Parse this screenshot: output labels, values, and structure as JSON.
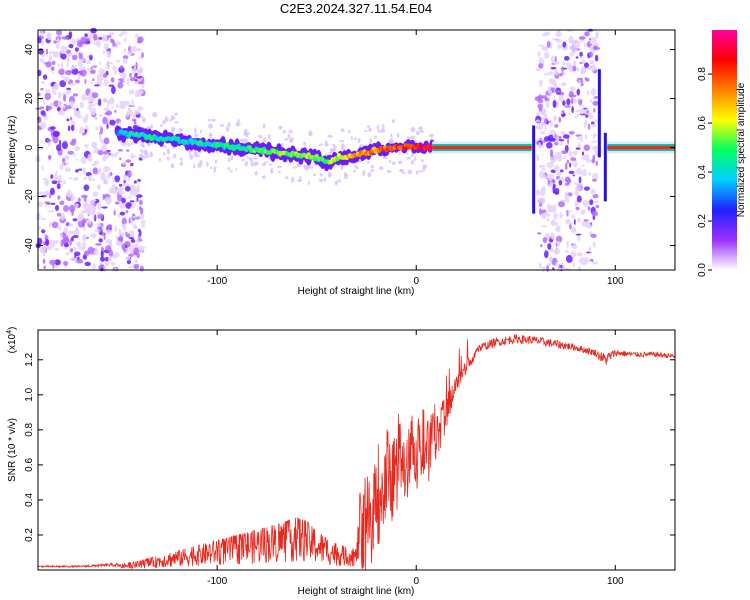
{
  "figure": {
    "title": "C2E3.2024.327.11.54.E04"
  },
  "chart_data": [
    {
      "type": "heatmap",
      "title": "C2E3.2024.327.11.54.E04",
      "xlabel": "Height of straight line (km)",
      "ylabel": "Frequency (Hz)",
      "xlim": [
        -190,
        130
      ],
      "ylim": [
        -50,
        48
      ],
      "xticks": [
        -100,
        0,
        100
      ],
      "xtick_labels": [
        "-100",
        "0",
        "100"
      ],
      "yticks": [
        -40,
        -20,
        0,
        20,
        40
      ],
      "ytick_labels": [
        "-40",
        "-20",
        "0",
        "20",
        "40"
      ],
      "colorbar": {
        "label": "Normalized spectral amplitude",
        "range": [
          0,
          0.98
        ],
        "ticks": [
          0.0,
          0.2,
          0.4,
          0.6,
          0.8
        ],
        "tick_labels": [
          "0.0",
          "0.2",
          "0.4",
          "0.6",
          "0.8"
        ],
        "colormap": [
          "#ffffff",
          "#9b30ff",
          "#2020ff",
          "#00d0ff",
          "#00ff60",
          "#ffff00",
          "#ff8000",
          "#ff0000",
          "#ff00a0"
        ]
      },
      "ridge": {
        "x": [
          -150,
          -140,
          -130,
          -120,
          -110,
          -100,
          -90,
          -80,
          -70,
          -60,
          -50,
          -45,
          -40,
          -30,
          -20,
          -10,
          0,
          10,
          20,
          40,
          55,
          60,
          65,
          90,
          95,
          100,
          130
        ],
        "y": [
          6,
          5,
          4,
          3,
          2,
          1,
          0,
          -1,
          -2,
          -3,
          -4,
          -6,
          -4,
          -3,
          -1,
          0,
          0.5,
          0,
          0,
          0,
          0,
          0,
          0,
          0,
          0,
          0,
          0
        ],
        "amplitude": [
          0.35,
          0.45,
          0.45,
          0.4,
          0.4,
          0.45,
          0.45,
          0.5,
          0.55,
          0.55,
          0.55,
          0.5,
          0.6,
          0.7,
          0.75,
          0.8,
          0.85,
          0.95,
          0.95,
          0.95,
          0.95,
          0.3,
          0.3,
          0.3,
          0.95,
          0.95,
          0.95
        ]
      },
      "noise_regions_x": [
        [
          -190,
          -137
        ],
        [
          61,
          91
        ]
      ],
      "grid": false
    },
    {
      "type": "line",
      "xlabel": "Height of straight line (km)",
      "ylabel": "SNR (10 * v/v)",
      "multiplier": "(x10",
      "multiplier_exp": "4",
      "multiplier_close": ")",
      "xlim": [
        -190,
        130
      ],
      "ylim": [
        0,
        1.37
      ],
      "xticks": [
        -100,
        0,
        100
      ],
      "xtick_labels": [
        "-100",
        "0",
        "100"
      ],
      "yticks": [
        0.2,
        0.4,
        0.6,
        0.8,
        1.0,
        1.2
      ],
      "ytick_labels": [
        "0.2",
        "0.4",
        "0.6",
        "0.8",
        "1.0",
        "1.2"
      ],
      "color": "#e8281e",
      "series": [
        {
          "x": [
            -190,
            -170,
            -150,
            -140,
            -130,
            -120,
            -110,
            -100,
            -90,
            -80,
            -70,
            -60,
            -55,
            -50,
            -45,
            -40,
            -35,
            -30,
            -28,
            -25,
            -20,
            -15,
            -10,
            -5,
            0,
            5,
            10,
            15,
            20,
            25,
            30,
            40,
            50,
            60,
            70,
            80,
            90,
            95,
            100,
            110,
            120,
            130
          ],
          "y": [
            0.02,
            0.02,
            0.03,
            0.05,
            0.08,
            0.11,
            0.14,
            0.17,
            0.2,
            0.23,
            0.26,
            0.3,
            0.28,
            0.22,
            0.18,
            0.15,
            0.13,
            0.12,
            0.5,
            0.55,
            0.62,
            0.7,
            0.78,
            0.8,
            0.85,
            0.82,
            0.9,
            1.0,
            1.12,
            1.2,
            1.26,
            1.3,
            1.32,
            1.31,
            1.29,
            1.27,
            1.24,
            1.2,
            1.24,
            1.23,
            1.23,
            1.22
          ],
          "spread": [
            0.01,
            0.01,
            0.02,
            0.04,
            0.08,
            0.12,
            0.15,
            0.17,
            0.2,
            0.22,
            0.26,
            0.3,
            0.28,
            0.25,
            0.22,
            0.2,
            0.2,
            0.2,
            0.55,
            0.6,
            0.55,
            0.5,
            0.45,
            0.4,
            0.4,
            0.35,
            0.3,
            0.2,
            0.12,
            0.08,
            0.05,
            0.05,
            0.05,
            0.05,
            0.05,
            0.04,
            0.04,
            0.08,
            0.04,
            0.03,
            0.03,
            0.03
          ]
        }
      ],
      "grid": false
    }
  ]
}
